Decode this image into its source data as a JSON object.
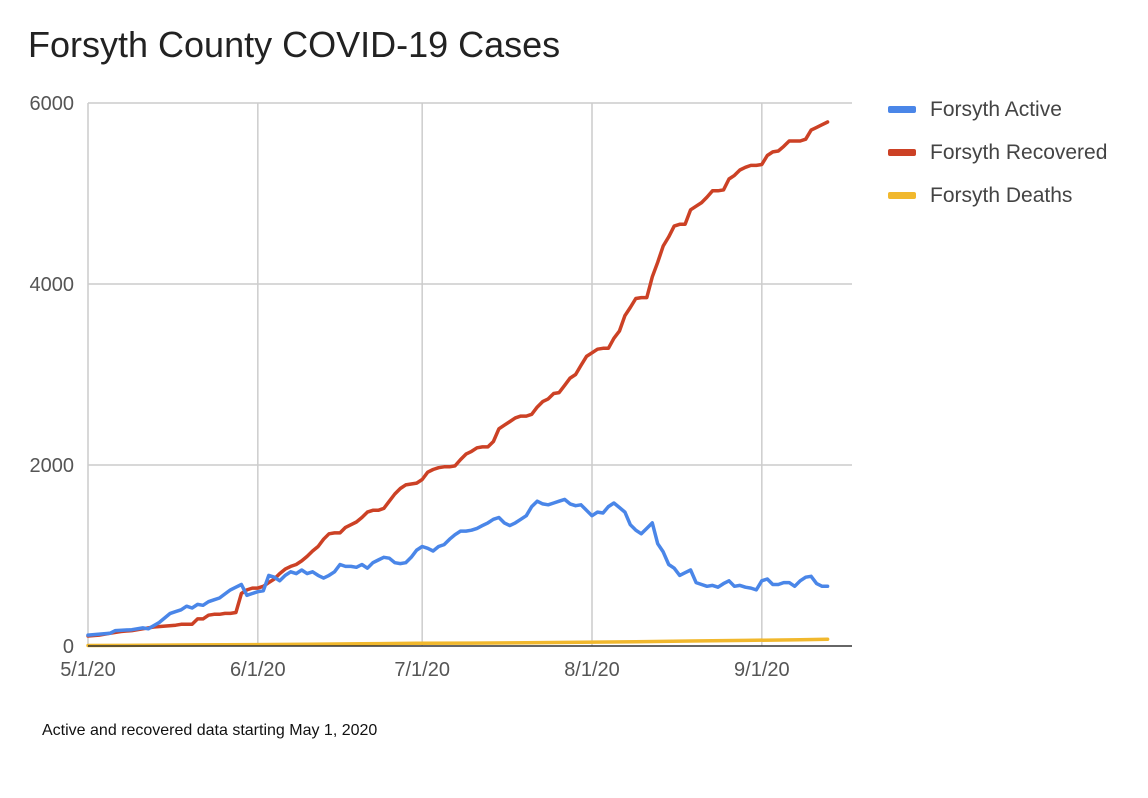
{
  "chart_data": {
    "type": "line",
    "title": "Forsyth County COVID-19 Cases",
    "note": "Active and recovered data starting May 1, 2020",
    "xlabel": "",
    "ylabel": "",
    "ylim": [
      0,
      6000
    ],
    "y_ticks": [
      "0",
      "2000",
      "4000",
      "6000"
    ],
    "x_ticks": [
      "5/1/20",
      "6/1/20",
      "7/1/20",
      "8/1/20",
      "9/1/20"
    ],
    "x_tick_days": [
      0,
      31,
      61,
      92,
      123
    ],
    "x_range_days": [
      0,
      131
    ],
    "grid": true,
    "legend_position": "right",
    "series": [
      {
        "name": "Forsyth Active",
        "color": "#4a86e8",
        "points": [
          [
            0,
            120
          ],
          [
            4,
            140
          ],
          [
            5,
            170
          ],
          [
            8,
            180
          ],
          [
            10,
            200
          ],
          [
            11,
            190
          ],
          [
            13,
            260
          ],
          [
            15,
            360
          ],
          [
            16,
            380
          ],
          [
            17,
            400
          ],
          [
            18,
            440
          ],
          [
            19,
            420
          ],
          [
            20,
            460
          ],
          [
            21,
            450
          ],
          [
            22,
            490
          ],
          [
            23,
            510
          ],
          [
            24,
            530
          ],
          [
            26,
            620
          ],
          [
            27,
            650
          ],
          [
            28,
            680
          ],
          [
            29,
            560
          ],
          [
            30,
            580
          ],
          [
            31,
            600
          ],
          [
            32,
            610
          ],
          [
            33,
            780
          ],
          [
            34,
            760
          ],
          [
            35,
            720
          ],
          [
            36,
            780
          ],
          [
            37,
            820
          ],
          [
            38,
            800
          ],
          [
            39,
            840
          ],
          [
            40,
            800
          ],
          [
            41,
            820
          ],
          [
            42,
            780
          ],
          [
            43,
            750
          ],
          [
            44,
            780
          ],
          [
            45,
            820
          ],
          [
            46,
            900
          ],
          [
            47,
            880
          ],
          [
            48,
            880
          ],
          [
            49,
            870
          ],
          [
            50,
            900
          ],
          [
            51,
            860
          ],
          [
            52,
            920
          ],
          [
            53,
            950
          ],
          [
            54,
            980
          ],
          [
            55,
            970
          ],
          [
            56,
            920
          ],
          [
            57,
            910
          ],
          [
            58,
            920
          ],
          [
            59,
            980
          ],
          [
            60,
            1060
          ],
          [
            61,
            1100
          ],
          [
            62,
            1080
          ],
          [
            63,
            1050
          ],
          [
            64,
            1100
          ],
          [
            65,
            1120
          ],
          [
            66,
            1180
          ],
          [
            67,
            1230
          ],
          [
            68,
            1270
          ],
          [
            69,
            1270
          ],
          [
            70,
            1280
          ],
          [
            71,
            1300
          ],
          [
            72,
            1330
          ],
          [
            73,
            1360
          ],
          [
            74,
            1400
          ],
          [
            75,
            1420
          ],
          [
            76,
            1360
          ],
          [
            77,
            1330
          ],
          [
            78,
            1360
          ],
          [
            79,
            1400
          ],
          [
            80,
            1440
          ],
          [
            81,
            1540
          ],
          [
            82,
            1600
          ],
          [
            83,
            1570
          ],
          [
            84,
            1560
          ],
          [
            85,
            1580
          ],
          [
            86,
            1600
          ],
          [
            87,
            1620
          ],
          [
            88,
            1570
          ],
          [
            89,
            1550
          ],
          [
            90,
            1560
          ],
          [
            91,
            1500
          ],
          [
            92,
            1440
          ],
          [
            93,
            1480
          ],
          [
            94,
            1470
          ],
          [
            95,
            1540
          ],
          [
            96,
            1580
          ],
          [
            97,
            1530
          ],
          [
            98,
            1480
          ],
          [
            99,
            1340
          ],
          [
            100,
            1280
          ],
          [
            101,
            1240
          ],
          [
            102,
            1300
          ],
          [
            103,
            1360
          ],
          [
            104,
            1130
          ],
          [
            105,
            1040
          ],
          [
            106,
            900
          ],
          [
            107,
            860
          ],
          [
            108,
            780
          ],
          [
            109,
            810
          ],
          [
            110,
            840
          ],
          [
            111,
            700
          ],
          [
            112,
            680
          ],
          [
            113,
            660
          ],
          [
            114,
            670
          ],
          [
            115,
            650
          ],
          [
            116,
            690
          ],
          [
            117,
            720
          ],
          [
            118,
            660
          ],
          [
            119,
            670
          ],
          [
            120,
            650
          ],
          [
            121,
            640
          ],
          [
            122,
            620
          ],
          [
            123,
            720
          ],
          [
            124,
            740
          ],
          [
            125,
            680
          ],
          [
            126,
            680
          ],
          [
            127,
            700
          ],
          [
            128,
            700
          ],
          [
            129,
            660
          ],
          [
            130,
            720
          ],
          [
            131,
            760
          ],
          [
            132,
            770
          ],
          [
            133,
            690
          ],
          [
            134,
            660
          ],
          [
            135,
            660
          ]
        ]
      },
      {
        "name": "Forsyth Recovered",
        "color": "#cc4125",
        "points": [
          [
            0,
            110
          ],
          [
            2,
            120
          ],
          [
            4,
            140
          ],
          [
            6,
            160
          ],
          [
            8,
            170
          ],
          [
            10,
            190
          ],
          [
            12,
            210
          ],
          [
            14,
            220
          ],
          [
            16,
            230
          ],
          [
            17,
            240
          ],
          [
            18,
            240
          ],
          [
            19,
            240
          ],
          [
            20,
            300
          ],
          [
            21,
            300
          ],
          [
            22,
            340
          ],
          [
            23,
            350
          ],
          [
            24,
            350
          ],
          [
            25,
            360
          ],
          [
            26,
            360
          ],
          [
            27,
            370
          ],
          [
            28,
            580
          ],
          [
            29,
            620
          ],
          [
            30,
            640
          ],
          [
            31,
            640
          ],
          [
            32,
            660
          ],
          [
            33,
            700
          ],
          [
            34,
            740
          ],
          [
            35,
            800
          ],
          [
            36,
            850
          ],
          [
            37,
            880
          ],
          [
            38,
            900
          ],
          [
            39,
            940
          ],
          [
            40,
            990
          ],
          [
            41,
            1050
          ],
          [
            42,
            1100
          ],
          [
            43,
            1180
          ],
          [
            44,
            1240
          ],
          [
            45,
            1250
          ],
          [
            46,
            1250
          ],
          [
            47,
            1310
          ],
          [
            48,
            1340
          ],
          [
            49,
            1370
          ],
          [
            50,
            1420
          ],
          [
            51,
            1480
          ],
          [
            52,
            1500
          ],
          [
            53,
            1500
          ],
          [
            54,
            1520
          ],
          [
            55,
            1600
          ],
          [
            56,
            1680
          ],
          [
            57,
            1740
          ],
          [
            58,
            1780
          ],
          [
            59,
            1790
          ],
          [
            60,
            1800
          ],
          [
            61,
            1840
          ],
          [
            62,
            1920
          ],
          [
            63,
            1950
          ],
          [
            64,
            1970
          ],
          [
            65,
            1980
          ],
          [
            66,
            1980
          ],
          [
            67,
            1990
          ],
          [
            68,
            2060
          ],
          [
            69,
            2120
          ],
          [
            70,
            2150
          ],
          [
            71,
            2190
          ],
          [
            72,
            2200
          ],
          [
            73,
            2200
          ],
          [
            74,
            2260
          ],
          [
            75,
            2400
          ],
          [
            76,
            2440
          ],
          [
            77,
            2480
          ],
          [
            78,
            2520
          ],
          [
            79,
            2540
          ],
          [
            80,
            2540
          ],
          [
            81,
            2560
          ],
          [
            82,
            2640
          ],
          [
            83,
            2700
          ],
          [
            84,
            2730
          ],
          [
            85,
            2790
          ],
          [
            86,
            2800
          ],
          [
            87,
            2880
          ],
          [
            88,
            2960
          ],
          [
            89,
            3000
          ],
          [
            90,
            3100
          ],
          [
            91,
            3200
          ],
          [
            92,
            3240
          ],
          [
            93,
            3280
          ],
          [
            94,
            3290
          ],
          [
            95,
            3290
          ],
          [
            96,
            3400
          ],
          [
            97,
            3480
          ],
          [
            98,
            3650
          ],
          [
            99,
            3740
          ],
          [
            100,
            3840
          ],
          [
            101,
            3850
          ],
          [
            102,
            3850
          ],
          [
            103,
            4080
          ],
          [
            104,
            4240
          ],
          [
            105,
            4420
          ],
          [
            106,
            4520
          ],
          [
            107,
            4640
          ],
          [
            108,
            4660
          ],
          [
            109,
            4660
          ],
          [
            110,
            4820
          ],
          [
            111,
            4860
          ],
          [
            112,
            4900
          ],
          [
            113,
            4960
          ],
          [
            114,
            5030
          ],
          [
            115,
            5030
          ],
          [
            116,
            5040
          ],
          [
            117,
            5160
          ],
          [
            118,
            5200
          ],
          [
            119,
            5260
          ],
          [
            120,
            5290
          ],
          [
            121,
            5310
          ],
          [
            122,
            5310
          ],
          [
            123,
            5320
          ],
          [
            124,
            5420
          ],
          [
            125,
            5460
          ],
          [
            126,
            5470
          ],
          [
            127,
            5520
          ],
          [
            128,
            5580
          ],
          [
            129,
            5580
          ],
          [
            130,
            5580
          ],
          [
            131,
            5600
          ],
          [
            132,
            5700
          ],
          [
            133,
            5730
          ],
          [
            134,
            5760
          ],
          [
            135,
            5790
          ]
        ]
      },
      {
        "name": "Forsyth Deaths",
        "color": "#f1b82d",
        "points": [
          [
            0,
            5
          ],
          [
            10,
            8
          ],
          [
            20,
            12
          ],
          [
            30,
            15
          ],
          [
            40,
            20
          ],
          [
            50,
            24
          ],
          [
            60,
            30
          ],
          [
            70,
            32
          ],
          [
            80,
            36
          ],
          [
            90,
            42
          ],
          [
            100,
            48
          ],
          [
            110,
            55
          ],
          [
            120,
            62
          ],
          [
            130,
            70
          ],
          [
            135,
            75
          ]
        ]
      }
    ]
  }
}
